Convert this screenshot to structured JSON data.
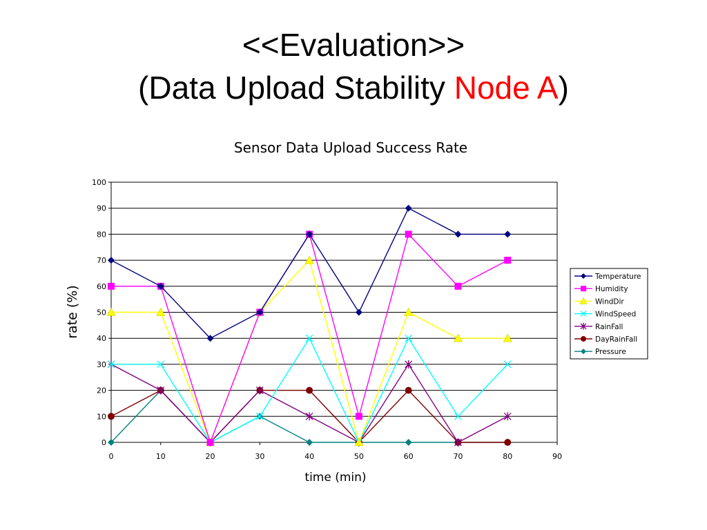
{
  "slide": {
    "title_line1": "<<Evaluation>>",
    "title_line2_prefix": "(Data Upload Stability ",
    "title_line2_accent": "Node A",
    "title_line2_suffix": ")",
    "accent_color": "#ff0000"
  },
  "chart_data": {
    "type": "line",
    "title": "Sensor Data Upload Success Rate",
    "xlabel": "time (min)",
    "ylabel": "rate (%)",
    "xlim": [
      0,
      90
    ],
    "ylim": [
      0,
      100
    ],
    "xticks": [
      0,
      10,
      20,
      30,
      40,
      50,
      60,
      70,
      80,
      90
    ],
    "yticks": [
      0,
      10,
      20,
      30,
      40,
      50,
      60,
      70,
      80,
      90,
      100
    ],
    "grid": "horizontal",
    "legend_position": "right",
    "x": [
      0,
      10,
      20,
      30,
      40,
      50,
      60,
      70,
      80
    ],
    "series": [
      {
        "name": "Temperature",
        "color": "#000080",
        "marker": "diamond",
        "values": [
          70,
          60,
          40,
          50,
          80,
          50,
          90,
          80,
          80
        ]
      },
      {
        "name": "Humidity",
        "color": "#ff00ff",
        "marker": "square",
        "values": [
          60,
          60,
          0,
          50,
          80,
          10,
          80,
          60,
          70
        ]
      },
      {
        "name": "WindDir",
        "color": "#ffff00",
        "marker": "triangle",
        "values": [
          50,
          50,
          0,
          50,
          70,
          0,
          50,
          40,
          40
        ]
      },
      {
        "name": "WindSpeed",
        "color": "#00ffff",
        "marker": "x",
        "values": [
          30,
          30,
          0,
          10,
          40,
          0,
          40,
          10,
          30
        ]
      },
      {
        "name": "RainFall",
        "color": "#800080",
        "marker": "star",
        "values": [
          30,
          20,
          0,
          20,
          10,
          0,
          30,
          0,
          10
        ]
      },
      {
        "name": "DayRainFall",
        "color": "#800000",
        "marker": "circle",
        "values": [
          10,
          20,
          0,
          20,
          20,
          0,
          20,
          0,
          0
        ]
      },
      {
        "name": "Pressure",
        "color": "#008080",
        "marker": "diamond",
        "values": [
          0,
          20,
          0,
          10,
          0,
          0,
          0,
          0,
          0
        ]
      }
    ]
  }
}
